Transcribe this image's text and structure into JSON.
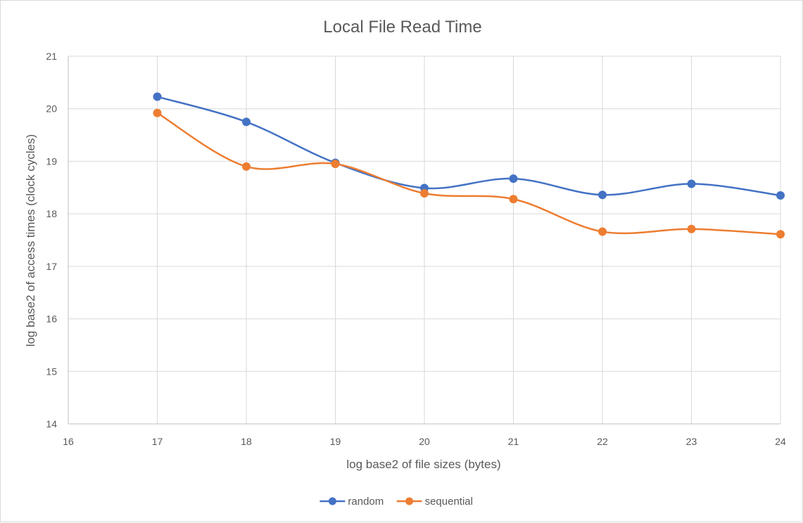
{
  "chart_data": {
    "type": "line",
    "title": "Local File Read Time",
    "xlabel": "log base2 of file sizes (bytes)",
    "ylabel": "log base2 of access times (clock cycles)",
    "xlim": [
      16,
      24
    ],
    "ylim": [
      14,
      21
    ],
    "xticks": [
      "16",
      "17",
      "18",
      "19",
      "20",
      "21",
      "22",
      "23",
      "24"
    ],
    "yticks": [
      "14",
      "15",
      "16",
      "17",
      "18",
      "19",
      "20",
      "21"
    ],
    "grid": true,
    "smooth": true,
    "legend_position": "bottom",
    "x": [
      17,
      18,
      19,
      20,
      21,
      22,
      23,
      24
    ],
    "series": [
      {
        "name": "random",
        "color": "#4472C4",
        "values": [
          20.23,
          19.75,
          18.97,
          18.49,
          18.67,
          18.36,
          18.57,
          18.35
        ]
      },
      {
        "name": "sequential",
        "color": "#ED7D31",
        "values": [
          19.92,
          18.9,
          18.95,
          18.39,
          18.28,
          17.66,
          17.71,
          17.61
        ]
      }
    ]
  }
}
